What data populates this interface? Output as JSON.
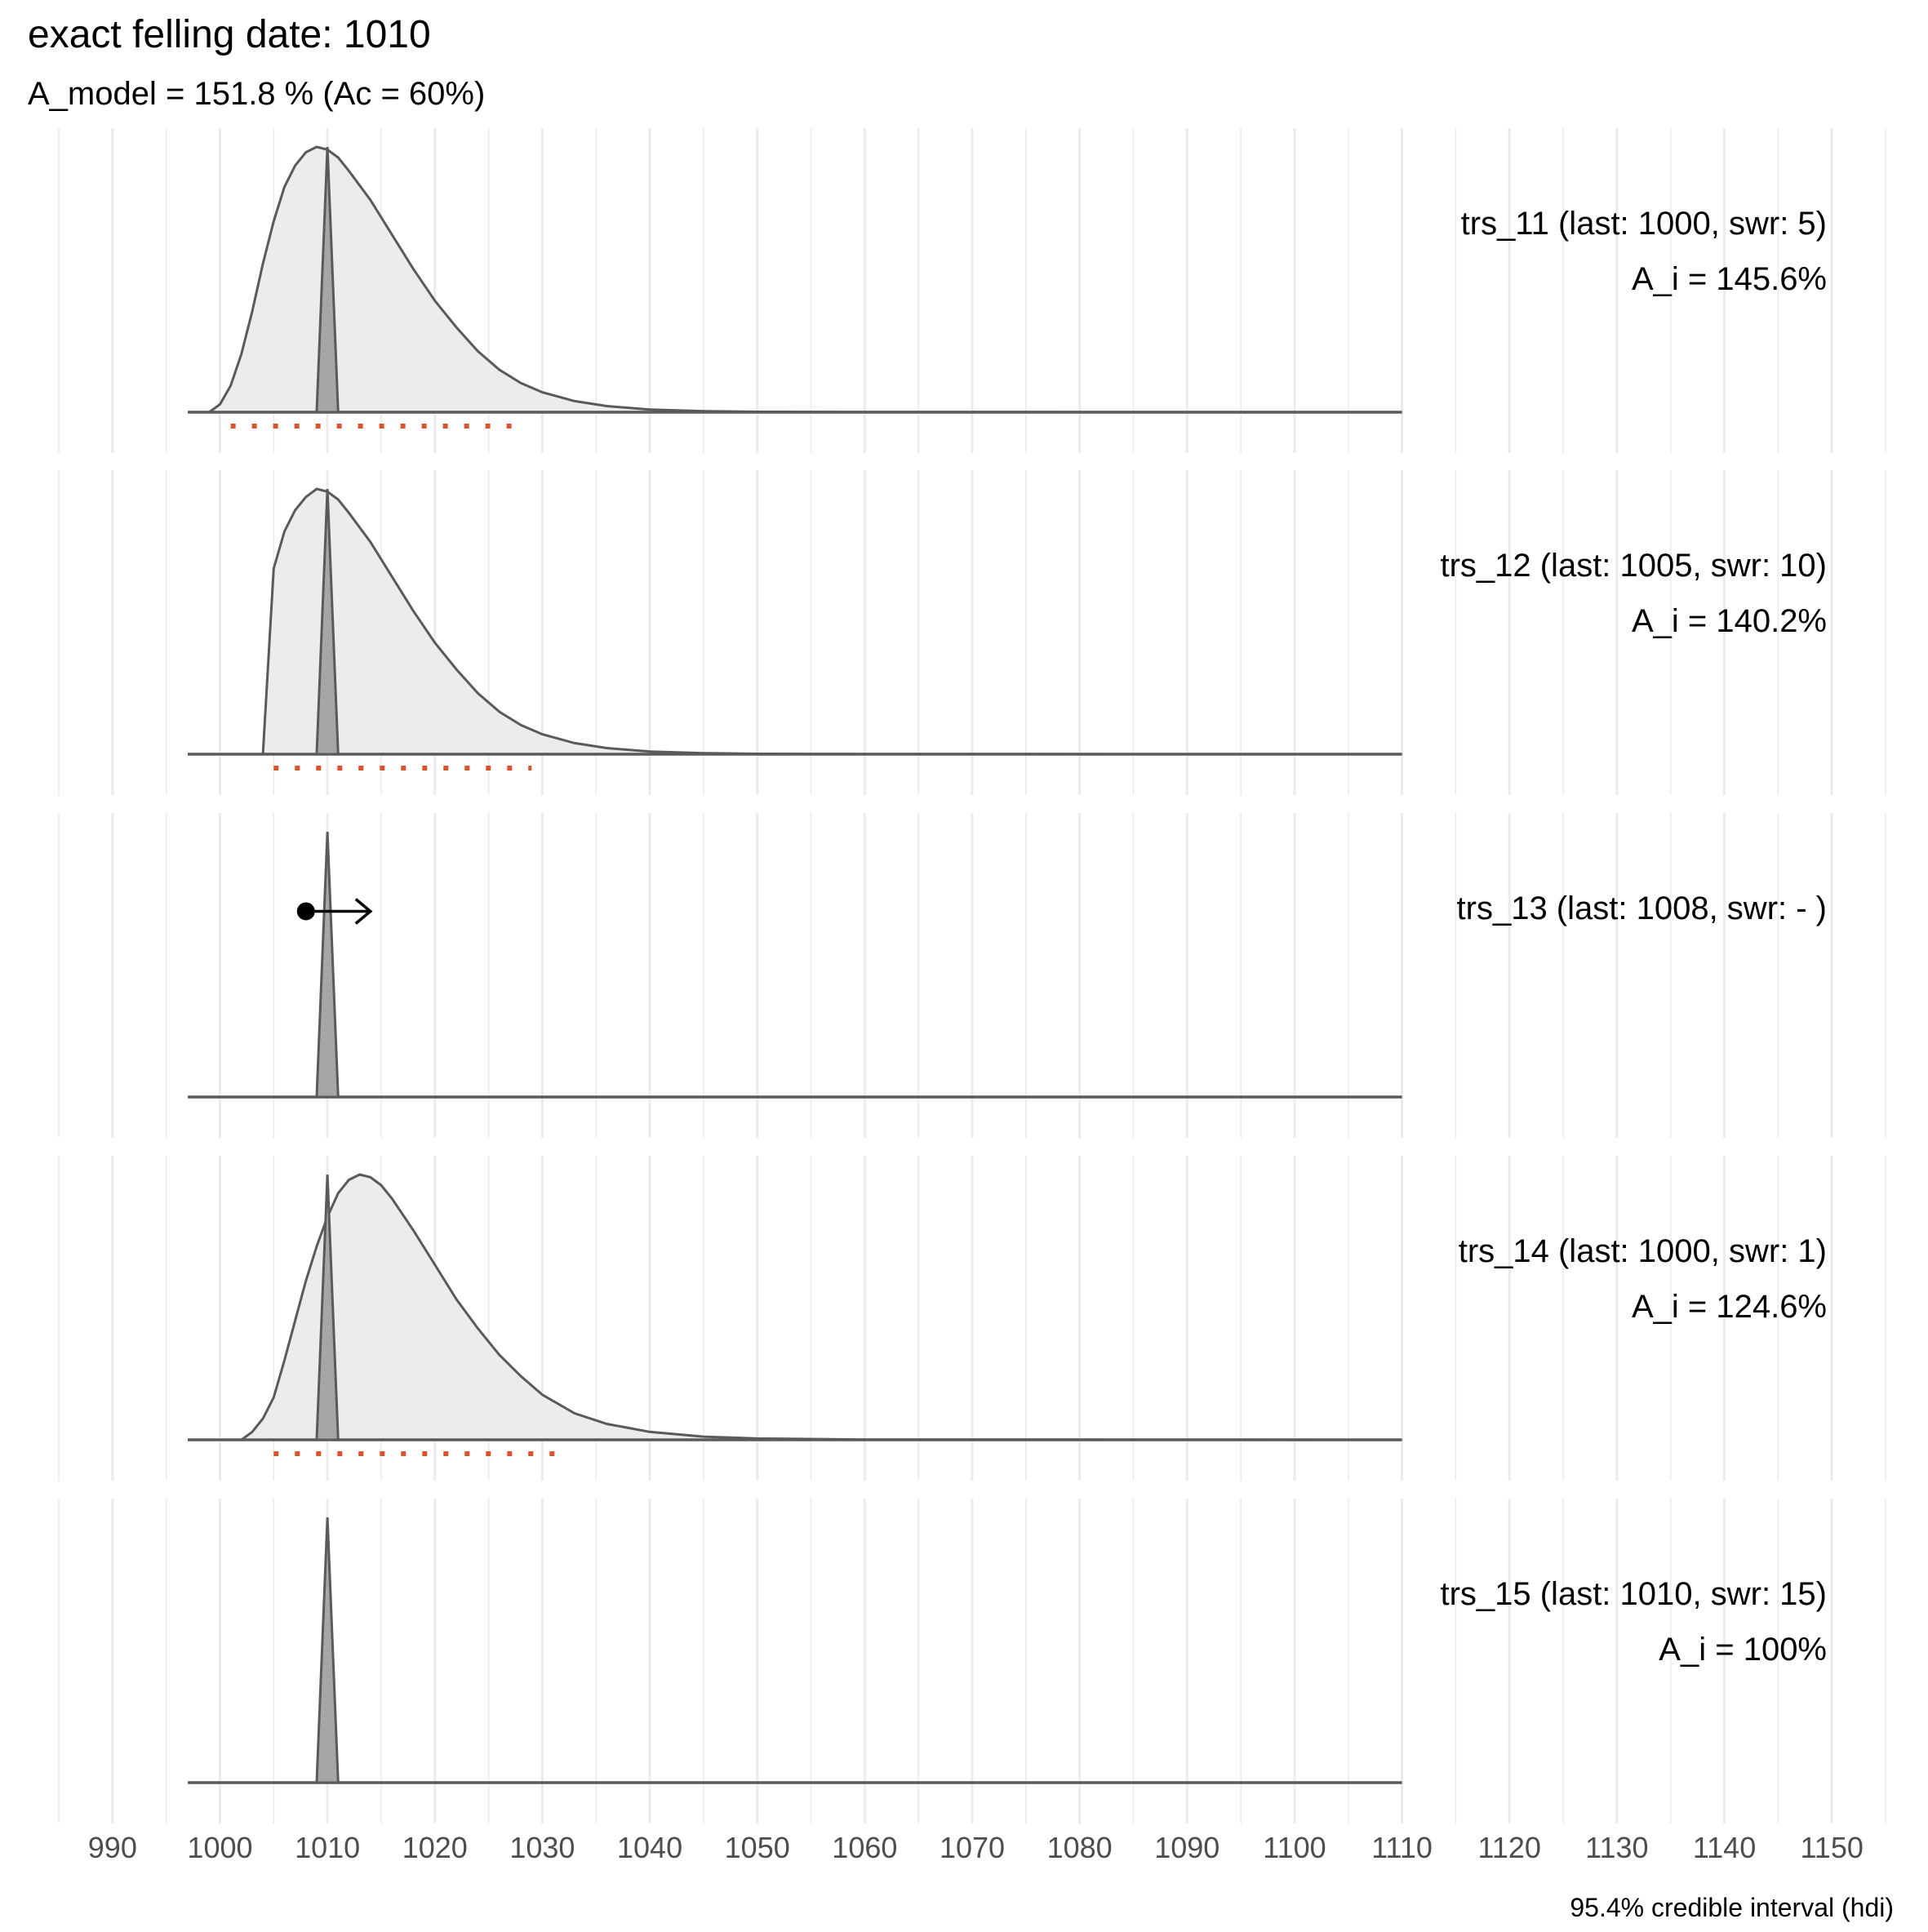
{
  "chart_data": {
    "type": "area",
    "title": "exact felling date:  1010",
    "subtitle": "A_model =  151.8 % (Ac = 60%)",
    "caption": "95.4% credible interval (hdi)",
    "x_range": [
      985,
      1155
    ],
    "x_ticks": [
      990,
      1000,
      1010,
      1020,
      1030,
      1040,
      1050,
      1060,
      1070,
      1080,
      1090,
      1100,
      1110,
      1120,
      1130,
      1140,
      1150
    ],
    "x_tick_labels": [
      "990",
      "1000",
      "1010",
      "1020",
      "1030",
      "1040",
      "1050",
      "1060",
      "1070",
      "1080",
      "1090",
      "1100",
      "1110",
      "1120",
      "1130",
      "1140",
      "1150"
    ],
    "density_domain": [
      997,
      1110
    ],
    "felling_date": 1010,
    "felling_spike": {
      "from": 1009,
      "peak": 1010,
      "to": 1011
    },
    "colors": {
      "density_fill": "#ececec",
      "density_line": "#5a5a5a",
      "spike_fill": "#a6a6a6",
      "hdi": "#d9532f",
      "grid": "#ebebeb",
      "arrow": "#000000"
    },
    "grid": true,
    "panels": [
      {
        "name": "trs_11",
        "label": "trs_11 (last: 1000, swr: 5)",
        "agreement": "A_i = 145.6%",
        "density": {
          "x": [
            999,
            1000,
            1001,
            1002,
            1003,
            1004,
            1005,
            1006,
            1007,
            1008,
            1009,
            1010,
            1011,
            1012,
            1014,
            1016,
            1018,
            1020,
            1022,
            1024,
            1026,
            1028,
            1030,
            1033,
            1036,
            1040,
            1045,
            1050,
            1060,
            1110
          ],
          "y": [
            0,
            0.03,
            0.1,
            0.22,
            0.38,
            0.56,
            0.72,
            0.85,
            0.93,
            0.98,
            1.0,
            0.99,
            0.96,
            0.91,
            0.8,
            0.67,
            0.54,
            0.42,
            0.32,
            0.23,
            0.16,
            0.11,
            0.075,
            0.042,
            0.023,
            0.01,
            0.004,
            0.0015,
            0.0003,
            0
          ]
        },
        "hdi": [
          1001,
          1028
        ]
      },
      {
        "name": "trs_12",
        "label": "trs_12 (last: 1005, swr: 10)",
        "agreement": "A_i = 140.2%",
        "density": {
          "x": [
            1004,
            1005,
            1006,
            1007,
            1008,
            1009,
            1010,
            1011,
            1012,
            1014,
            1016,
            1018,
            1020,
            1022,
            1024,
            1026,
            1028,
            1030,
            1033,
            1036,
            1040,
            1045,
            1050,
            1060,
            1110
          ],
          "y": [
            0,
            0.7,
            0.84,
            0.92,
            0.97,
            1.0,
            0.99,
            0.96,
            0.91,
            0.8,
            0.67,
            0.54,
            0.42,
            0.32,
            0.23,
            0.16,
            0.11,
            0.075,
            0.042,
            0.023,
            0.01,
            0.004,
            0.0015,
            0.0003,
            0
          ]
        },
        "hdi": [
          1005,
          1029
        ]
      },
      {
        "name": "trs_13",
        "label": "trs_13 (last: 1008, swr: - )",
        "agreement": "",
        "density": null,
        "hdi": null,
        "arrow": {
          "from": 1008,
          "to": 1014,
          "level": 0.7
        }
      },
      {
        "name": "trs_14",
        "label": "trs_14 (last: 1000, swr: 1)",
        "agreement": "A_i = 124.6%",
        "density": {
          "x": [
            1002,
            1003,
            1004,
            1005,
            1006,
            1007,
            1008,
            1009,
            1010,
            1011,
            1012,
            1013,
            1014,
            1015,
            1016,
            1018,
            1020,
            1022,
            1024,
            1026,
            1028,
            1030,
            1033,
            1036,
            1040,
            1045,
            1050,
            1060,
            1110
          ],
          "y": [
            0,
            0.03,
            0.08,
            0.16,
            0.3,
            0.45,
            0.6,
            0.73,
            0.84,
            0.93,
            0.98,
            1.0,
            0.99,
            0.96,
            0.91,
            0.79,
            0.66,
            0.53,
            0.42,
            0.32,
            0.24,
            0.17,
            0.1,
            0.06,
            0.03,
            0.012,
            0.005,
            0.001,
            0
          ]
        },
        "hdi": [
          1005,
          1032
        ]
      },
      {
        "name": "trs_15",
        "label": "trs_15 (last: 1010, swr: 15)",
        "agreement": "A_i = 100%",
        "density": null,
        "hdi": null
      }
    ]
  }
}
